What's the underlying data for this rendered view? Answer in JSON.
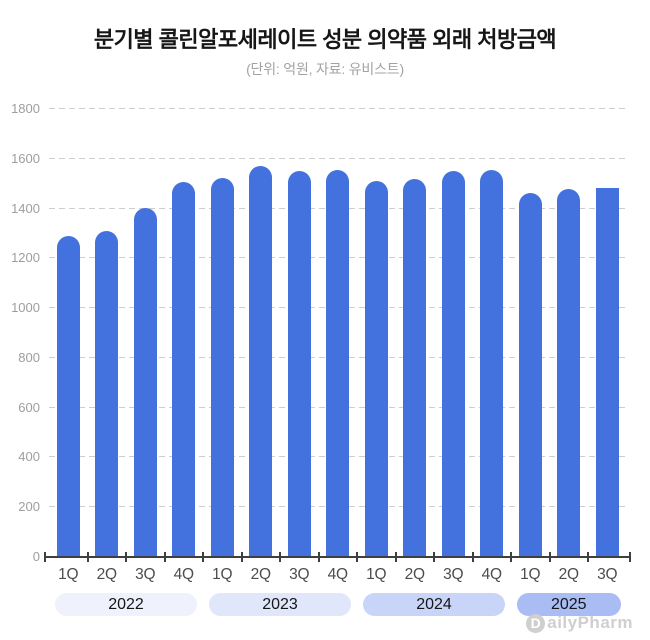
{
  "header": {
    "title": "분기별 콜린알포세레이트 성분 의약품 외래 처방금액",
    "subtitle": "(단위: 억원, 자료: 유비스트)"
  },
  "logo": {
    "initial": "D",
    "rest": "ailyPharm"
  },
  "colors": {
    "bar": "#4372DF",
    "axis": "#3f3f3f",
    "grid": "#cdcdcd",
    "y_label": "#9e9e9e",
    "x_label": "#4d4d4d",
    "pill_text": "#161616",
    "pill_fills": [
      "#EFF2FD",
      "#E0E7FB",
      "#C9D5F8",
      "#A9BCF4"
    ],
    "logo": "#cfcfcf"
  },
  "chart_data": {
    "type": "bar",
    "title": "분기별 콜린알포세레이트 성분 의약품 외래 처방금액",
    "subtitle": "(단위: 억원, 자료: 유비스트)",
    "unit": "억원",
    "source": "유비스트",
    "ylim": [
      0,
      1800
    ],
    "yticks": [
      0,
      200,
      400,
      600,
      800,
      1000,
      1200,
      1400,
      1600,
      1800
    ],
    "grid": "horizontal-dashed",
    "legend": "none",
    "groups": [
      {
        "year": "2022",
        "quarters": [
          "1Q",
          "2Q",
          "3Q",
          "4Q"
        ],
        "values": [
          1284,
          1306,
          1399,
          1502
        ]
      },
      {
        "year": "2023",
        "quarters": [
          "1Q",
          "2Q",
          "3Q",
          "4Q"
        ],
        "values": [
          1519,
          1566,
          1548,
          1550
        ]
      },
      {
        "year": "2024",
        "quarters": [
          "1Q",
          "2Q",
          "3Q",
          "4Q"
        ],
        "values": [
          1506,
          1513,
          1548,
          1551
        ]
      },
      {
        "year": "2025",
        "quarters": [
          "1Q",
          "2Q",
          "3Q"
        ],
        "values": [
          1458,
          1474,
          1477
        ]
      }
    ]
  }
}
